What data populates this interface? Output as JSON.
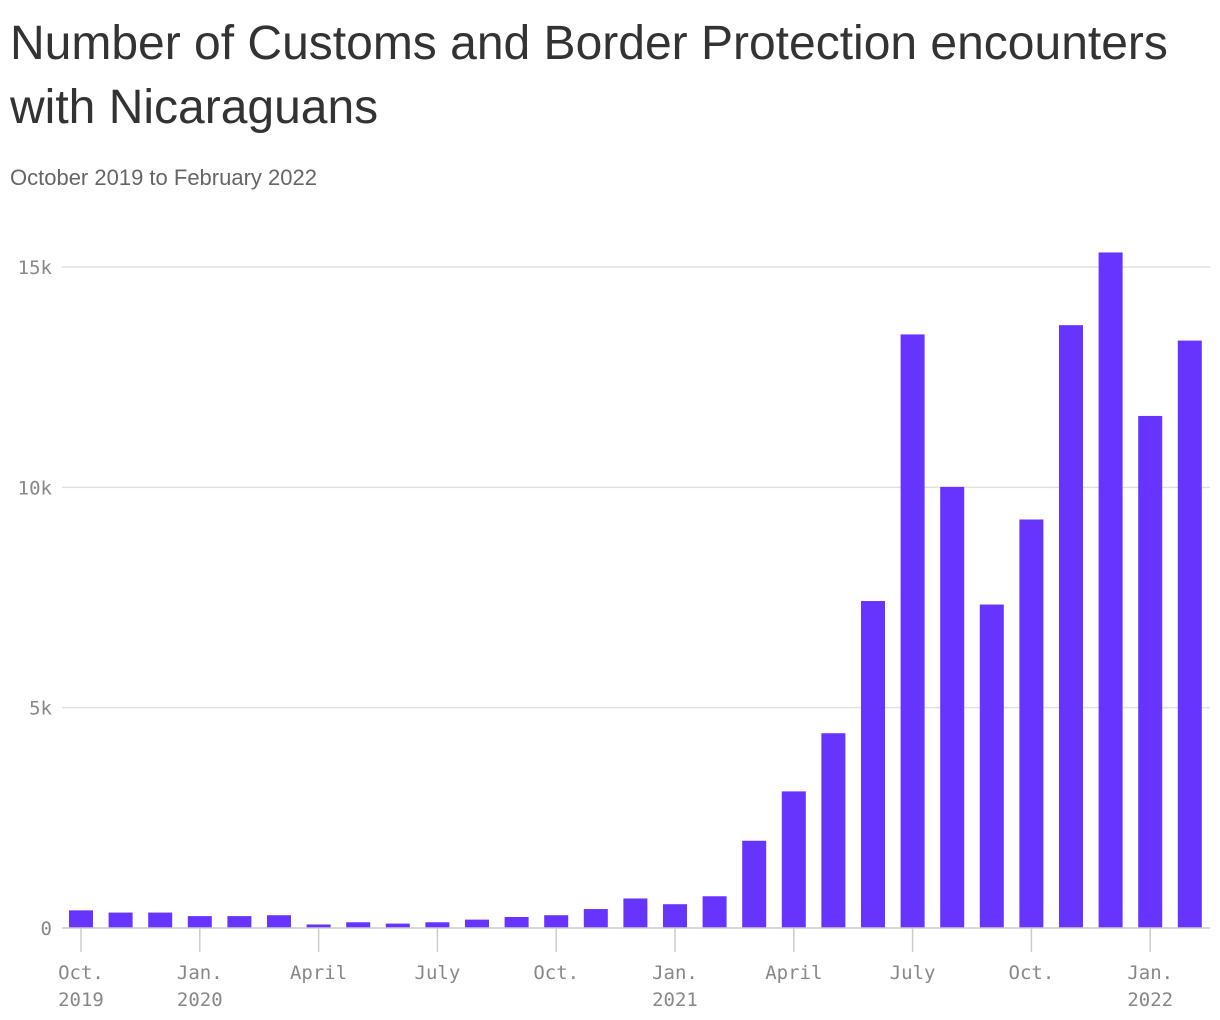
{
  "title": "Number of Customs and Border Protection encounters with Nicaraguans",
  "subtitle": "October 2019 to February 2022",
  "colors": {
    "bar": "#6633ff",
    "grid": "#e0e0e0",
    "axis": "#cccccc",
    "text": "#333333",
    "muted": "#888888"
  },
  "chart_data": {
    "type": "bar",
    "title": "Number of Customs and Border Protection encounters with Nicaraguans",
    "subtitle": "October 2019 to February 2022",
    "xlabel": "",
    "ylabel": "",
    "ylim": [
      0,
      15000
    ],
    "grid": true,
    "yticks": [
      {
        "value": 0,
        "label": "0"
      },
      {
        "value": 5000,
        "label": "5k"
      },
      {
        "value": 10000,
        "label": "10k"
      },
      {
        "value": 15000,
        "label": "15k"
      }
    ],
    "xticks": [
      {
        "index": 0,
        "line1": "Oct.",
        "line2": "2019"
      },
      {
        "index": 3,
        "line1": "Jan.",
        "line2": "2020"
      },
      {
        "index": 6,
        "line1": "April",
        "line2": ""
      },
      {
        "index": 9,
        "line1": "July",
        "line2": ""
      },
      {
        "index": 12,
        "line1": "Oct.",
        "line2": ""
      },
      {
        "index": 15,
        "line1": "Jan.",
        "line2": "2021"
      },
      {
        "index": 18,
        "line1": "April",
        "line2": ""
      },
      {
        "index": 21,
        "line1": "July",
        "line2": ""
      },
      {
        "index": 24,
        "line1": "Oct.",
        "line2": ""
      },
      {
        "index": 27,
        "line1": "Jan.",
        "line2": "2022"
      }
    ],
    "categories": [
      "2019-10",
      "2019-11",
      "2019-12",
      "2020-01",
      "2020-02",
      "2020-03",
      "2020-04",
      "2020-05",
      "2020-06",
      "2020-07",
      "2020-08",
      "2020-09",
      "2020-10",
      "2020-11",
      "2020-12",
      "2021-01",
      "2021-02",
      "2021-03",
      "2021-04",
      "2021-05",
      "2021-06",
      "2021-07",
      "2021-08",
      "2021-09",
      "2021-10",
      "2021-11",
      "2021-12",
      "2022-01",
      "2022-02"
    ],
    "values": [
      400,
      350,
      350,
      270,
      270,
      290,
      80,
      130,
      100,
      130,
      190,
      250,
      290,
      430,
      670,
      540,
      720,
      1980,
      3100,
      4420,
      7420,
      13470,
      10010,
      7340,
      9270,
      13680,
      15330,
      11620,
      13330
    ]
  }
}
